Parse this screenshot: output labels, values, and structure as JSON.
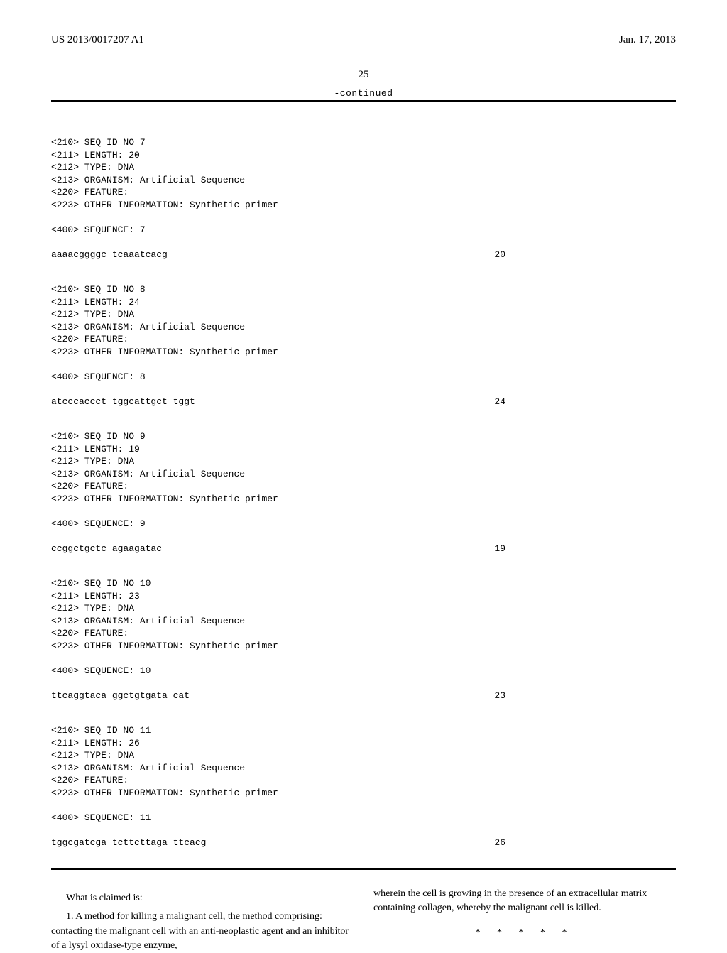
{
  "header": {
    "pub_number": "US 2013/0017207 A1",
    "pub_date": "Jan. 17, 2013"
  },
  "page_number": "25",
  "continued_label": "-continued",
  "sequences": [
    {
      "lines": [
        "<210> SEQ ID NO 7",
        "<211> LENGTH: 20",
        "<212> TYPE: DNA",
        "<213> ORGANISM: Artificial Sequence",
        "<220> FEATURE:",
        "<223> OTHER INFORMATION: Synthetic primer",
        "",
        "<400> SEQUENCE: 7"
      ],
      "seq_text": "aaaacggggc tcaaatcacg",
      "seq_len": "20"
    },
    {
      "lines": [
        "<210> SEQ ID NO 8",
        "<211> LENGTH: 24",
        "<212> TYPE: DNA",
        "<213> ORGANISM: Artificial Sequence",
        "<220> FEATURE:",
        "<223> OTHER INFORMATION: Synthetic primer",
        "",
        "<400> SEQUENCE: 8"
      ],
      "seq_text": "atcccaccct tggcattgct tggt",
      "seq_len": "24"
    },
    {
      "lines": [
        "<210> SEQ ID NO 9",
        "<211> LENGTH: 19",
        "<212> TYPE: DNA",
        "<213> ORGANISM: Artificial Sequence",
        "<220> FEATURE:",
        "<223> OTHER INFORMATION: Synthetic primer",
        "",
        "<400> SEQUENCE: 9"
      ],
      "seq_text": "ccggctgctc agaagatac",
      "seq_len": "19"
    },
    {
      "lines": [
        "<210> SEQ ID NO 10",
        "<211> LENGTH: 23",
        "<212> TYPE: DNA",
        "<213> ORGANISM: Artificial Sequence",
        "<220> FEATURE:",
        "<223> OTHER INFORMATION: Synthetic primer",
        "",
        "<400> SEQUENCE: 10"
      ],
      "seq_text": "ttcaggtaca ggctgtgata cat",
      "seq_len": "23"
    },
    {
      "lines": [
        "<210> SEQ ID NO 11",
        "<211> LENGTH: 26",
        "<212> TYPE: DNA",
        "<213> ORGANISM: Artificial Sequence",
        "<220> FEATURE:",
        "<223> OTHER INFORMATION: Synthetic primer",
        "",
        "<400> SEQUENCE: 11"
      ],
      "seq_text": "tggcgatcga tcttcttaga ttcacg",
      "seq_len": "26"
    }
  ],
  "claims": {
    "lead_in": "What is claimed is:",
    "left_text": "1. A method for killing a malignant cell, the method comprising: contacting the malignant cell with an anti-neoplastic agent and an inhibitor of a lysyl oxidase-type enzyme,",
    "right_text": "wherein the cell is growing in the presence of an extracellular matrix containing collagen, whereby the malignant cell is killed."
  },
  "asterisks": "*   *   *   *   *"
}
